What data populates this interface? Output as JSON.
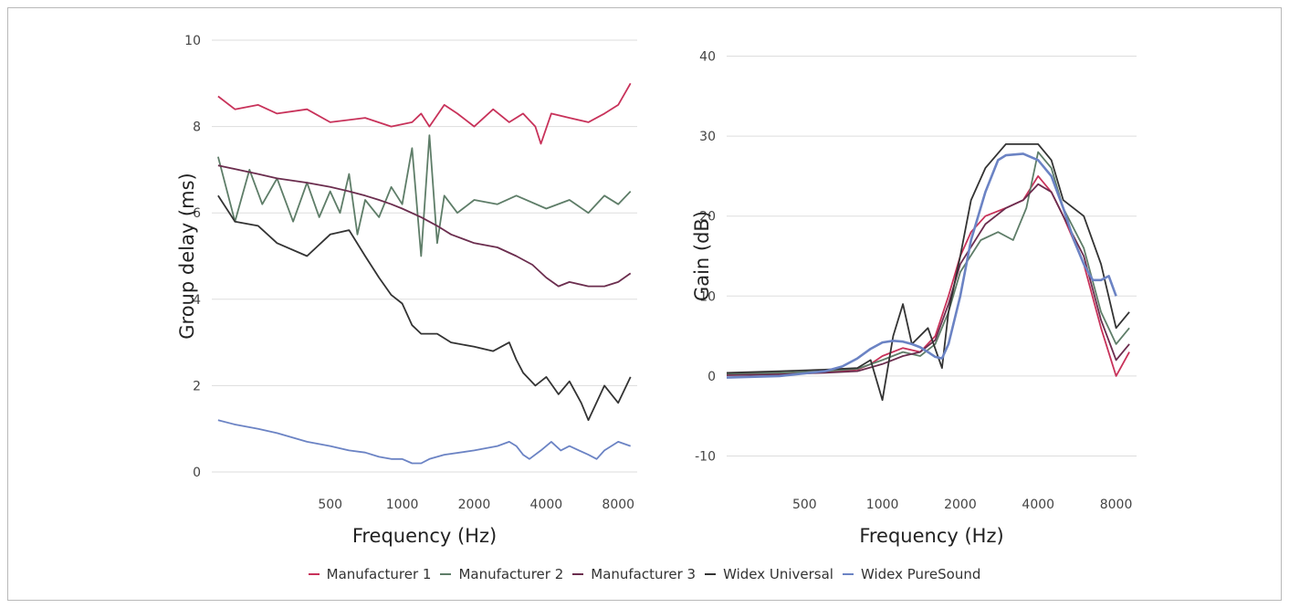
{
  "chart_data": [
    {
      "type": "line",
      "title": "",
      "xlabel": "Frequency (Hz)",
      "ylabel": "Group delay (ms)",
      "x_scale": "log",
      "xlim": [
        160,
        9600
      ],
      "ylim": [
        0,
        10
      ],
      "x_ticks": [
        500,
        1000,
        2000,
        4000,
        8000
      ],
      "x_tick_labels": [
        "500",
        "1000",
        "2000",
        "4000",
        "8000"
      ],
      "y_ticks": [
        0,
        2,
        4,
        6,
        8,
        10
      ],
      "y_tick_labels": [
        "0",
        "2",
        "4",
        "6",
        "8",
        "10"
      ],
      "grid": "horizontal",
      "series": [
        {
          "name": "Manufacturer 1",
          "color": "#c8325a",
          "x": [
            170,
            200,
            250,
            300,
            400,
            500,
            700,
            900,
            1100,
            1200,
            1300,
            1500,
            1700,
            2000,
            2400,
            2800,
            3200,
            3600,
            3800,
            4200,
            5000,
            6000,
            7000,
            8000,
            9000
          ],
          "y": [
            8.7,
            8.4,
            8.5,
            8.3,
            8.4,
            8.1,
            8.2,
            8.0,
            8.1,
            8.3,
            8.0,
            8.5,
            8.3,
            8.0,
            8.4,
            8.1,
            8.3,
            8.0,
            7.6,
            8.3,
            8.2,
            8.1,
            8.3,
            8.5,
            9.0
          ]
        },
        {
          "name": "Manufacturer 2",
          "color": "#5e7d68",
          "x": [
            170,
            200,
            230,
            260,
            300,
            350,
            400,
            450,
            500,
            550,
            600,
            650,
            700,
            800,
            900,
            1000,
            1100,
            1200,
            1300,
            1400,
            1500,
            1700,
            2000,
            2500,
            3000,
            4000,
            5000,
            6000,
            7000,
            8000,
            9000
          ],
          "y": [
            7.3,
            5.8,
            7.0,
            6.2,
            6.8,
            5.8,
            6.7,
            5.9,
            6.5,
            6.0,
            6.9,
            5.5,
            6.3,
            5.9,
            6.6,
            6.2,
            7.5,
            5.0,
            7.8,
            5.3,
            6.4,
            6.0,
            6.3,
            6.2,
            6.4,
            6.1,
            6.3,
            6.0,
            6.4,
            6.2,
            6.5
          ]
        },
        {
          "name": "Manufacturer 3",
          "color": "#6b2d4e",
          "x": [
            170,
            250,
            300,
            400,
            500,
            600,
            700,
            800,
            900,
            1000,
            1200,
            1400,
            1600,
            2000,
            2500,
            3000,
            3500,
            4000,
            4500,
            5000,
            6000,
            7000,
            8000,
            9000
          ],
          "y": [
            7.1,
            6.9,
            6.8,
            6.7,
            6.6,
            6.5,
            6.4,
            6.3,
            6.2,
            6.1,
            5.9,
            5.7,
            5.5,
            5.3,
            5.2,
            5.0,
            4.8,
            4.5,
            4.3,
            4.4,
            4.3,
            4.3,
            4.4,
            4.6
          ]
        },
        {
          "name": "Widex Universal",
          "color": "#333333",
          "x": [
            170,
            200,
            250,
            300,
            400,
            500,
            600,
            700,
            800,
            900,
            1000,
            1100,
            1200,
            1400,
            1600,
            2000,
            2400,
            2800,
            3000,
            3200,
            3600,
            4000,
            4500,
            5000,
            5600,
            6000,
            7000,
            8000,
            9000
          ],
          "y": [
            6.4,
            5.8,
            5.7,
            5.3,
            5.0,
            5.5,
            5.6,
            5.0,
            4.5,
            4.1,
            3.9,
            3.4,
            3.2,
            3.2,
            3.0,
            2.9,
            2.8,
            3.0,
            2.6,
            2.3,
            2.0,
            2.2,
            1.8,
            2.1,
            1.6,
            1.2,
            2.0,
            1.6,
            2.2
          ]
        },
        {
          "name": "Widex PureSound",
          "color": "#6b83c4",
          "x": [
            170,
            200,
            250,
            300,
            400,
            500,
            600,
            700,
            800,
            900,
            1000,
            1100,
            1200,
            1300,
            1500,
            2000,
            2500,
            2800,
            3000,
            3200,
            3400,
            3800,
            4200,
            4600,
            5000,
            6000,
            6500,
            7000,
            8000,
            9000
          ],
          "y": [
            1.2,
            1.1,
            1.0,
            0.9,
            0.7,
            0.6,
            0.5,
            0.45,
            0.35,
            0.3,
            0.3,
            0.2,
            0.2,
            0.3,
            0.4,
            0.5,
            0.6,
            0.7,
            0.6,
            0.4,
            0.3,
            0.5,
            0.7,
            0.5,
            0.6,
            0.4,
            0.3,
            0.5,
            0.7,
            0.6
          ]
        }
      ]
    },
    {
      "type": "line",
      "title": "",
      "xlabel": "Frequency (Hz)",
      "ylabel": "Gain (dB)",
      "x_scale": "log",
      "xlim": [
        250,
        9600
      ],
      "ylim": [
        -12,
        42
      ],
      "x_ticks": [
        500,
        1000,
        2000,
        4000,
        8000
      ],
      "x_tick_labels": [
        "500",
        "1000",
        "2000",
        "4000",
        "8000"
      ],
      "y_ticks": [
        -10,
        0,
        10,
        20,
        30,
        40
      ],
      "y_tick_labels": [
        "-10",
        "0",
        "10",
        "20",
        "30",
        "40"
      ],
      "grid": "horizontal",
      "series": [
        {
          "name": "Manufacturer 1",
          "color": "#c8325a",
          "x": [
            250,
            400,
            600,
            800,
            900,
            1000,
            1200,
            1400,
            1600,
            1800,
            2000,
            2200,
            2500,
            3000,
            3500,
            4000,
            4500,
            5000,
            6000,
            7000,
            8000,
            9000
          ],
          "y": [
            0.2,
            0.3,
            0.5,
            0.8,
            1.5,
            2.5,
            3.5,
            3.0,
            5.0,
            10.0,
            15.0,
            18.0,
            20.0,
            21.0,
            22.0,
            25.0,
            23.0,
            20.0,
            14.0,
            6.0,
            0.0,
            3.0
          ]
        },
        {
          "name": "Manufacturer 2",
          "color": "#5e7d68",
          "x": [
            250,
            400,
            600,
            800,
            1000,
            1200,
            1400,
            1600,
            1800,
            2000,
            2400,
            2800,
            3200,
            3600,
            4000,
            4500,
            5000,
            6000,
            7000,
            8000,
            9000
          ],
          "y": [
            0.3,
            0.4,
            0.6,
            0.9,
            2.0,
            3.0,
            2.5,
            4.0,
            8.0,
            13.0,
            17.0,
            18.0,
            17.0,
            21.0,
            28.0,
            26.0,
            21.0,
            16.0,
            8.0,
            4.0,
            6.0
          ]
        },
        {
          "name": "Manufacturer 3",
          "color": "#6b2d4e",
          "x": [
            250,
            400,
            600,
            800,
            1000,
            1200,
            1400,
            1600,
            1800,
            2000,
            2500,
            3000,
            3500,
            4000,
            4500,
            5000,
            6000,
            7000,
            8000,
            9000
          ],
          "y": [
            0.1,
            0.2,
            0.4,
            0.6,
            1.5,
            2.5,
            3.0,
            4.5,
            9.0,
            14.0,
            19.0,
            21.0,
            22.0,
            24.0,
            23.0,
            20.0,
            15.0,
            7.0,
            2.0,
            4.0
          ]
        },
        {
          "name": "Widex Universal",
          "color": "#333333",
          "x": [
            250,
            400,
            600,
            800,
            900,
            1000,
            1100,
            1200,
            1300,
            1500,
            1700,
            1800,
            2000,
            2200,
            2500,
            3000,
            3500,
            4000,
            4500,
            5000,
            6000,
            7000,
            8000,
            9000
          ],
          "y": [
            0.4,
            0.6,
            0.8,
            1.0,
            2.0,
            -3.0,
            5.0,
            9.0,
            4.0,
            6.0,
            1.0,
            8.0,
            15.0,
            22.0,
            26.0,
            29.0,
            29.0,
            29.0,
            27.0,
            22.0,
            20.0,
            14.0,
            6.0,
            8.0
          ]
        },
        {
          "name": "Widex PureSound",
          "color": "#6b83c4",
          "x": [
            250,
            400,
            600,
            700,
            800,
            900,
            1000,
            1100,
            1200,
            1300,
            1400,
            1500,
            1600,
            1700,
            1800,
            2000,
            2200,
            2500,
            2800,
            3000,
            3500,
            4000,
            4500,
            5000,
            5500,
            6000,
            6500,
            7000,
            7500,
            8000
          ],
          "y": [
            -0.2,
            0.0,
            0.6,
            1.2,
            2.2,
            3.4,
            4.2,
            4.4,
            4.3,
            4.0,
            3.6,
            3.0,
            2.4,
            2.2,
            4.0,
            10.0,
            17.0,
            23.0,
            27.0,
            27.6,
            27.8,
            27.0,
            25.0,
            21.0,
            17.0,
            14.0,
            12.0,
            12.0,
            12.5,
            10.0
          ]
        }
      ]
    }
  ],
  "legend": {
    "items": [
      {
        "label": "Manufacturer 1",
        "color": "#c8325a"
      },
      {
        "label": "Manufacturer 2",
        "color": "#5e7d68"
      },
      {
        "label": "Manufacturer 3",
        "color": "#6b2d4e"
      },
      {
        "label": "Widex Universal",
        "color": "#333333"
      },
      {
        "label": "Widex PureSound",
        "color": "#6b83c4"
      }
    ]
  }
}
